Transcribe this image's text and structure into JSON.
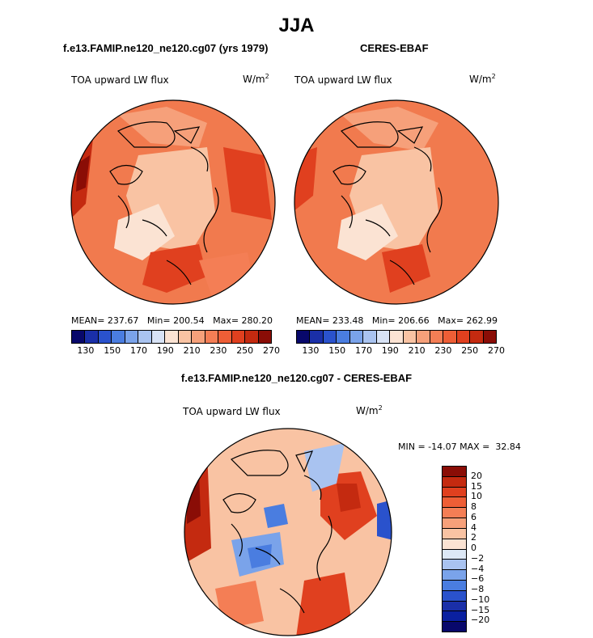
{
  "season": "JJA",
  "panels": {
    "model": {
      "title": "f.e13.FAMIP.ne120_ne120.cg07 (yrs 1979)",
      "variable": "TOA upward LW flux",
      "units_base": "W/m",
      "units_exp": "2",
      "stats": "MEAN= 237.67   Min= 200.54   Max= 280.20"
    },
    "obs": {
      "title": "CERES-EBAF",
      "variable": "TOA upward LW flux",
      "units_base": "W/m",
      "units_exp": "2",
      "stats": "MEAN= 233.48   Min= 206.66   Max= 262.99"
    },
    "diff": {
      "title": "f.e13.FAMIP.ne120_ne120.cg07 - CERES-EBAF",
      "variable": "TOA upward LW flux",
      "units_base": "W/m",
      "units_exp": "2",
      "stats": "MIN = -14.07 MAX =  32.84"
    }
  },
  "colorbar_abs": {
    "ticks": [
      "130",
      "150",
      "170",
      "190",
      "210",
      "230",
      "250",
      "270"
    ],
    "colors": [
      "#08086b",
      "#1a2fa8",
      "#2a52cc",
      "#4a7de0",
      "#7aa3ea",
      "#a9c3f0",
      "#d8e3f6",
      "#fbe3d3",
      "#f9c3a3",
      "#f6a07a",
      "#f47e55",
      "#ee5e36",
      "#e0401f",
      "#c42a10",
      "#8a0d06"
    ]
  },
  "colorbar_diff": {
    "labels": [
      "20",
      "15",
      "10",
      "8",
      "6",
      "4",
      "2",
      "0",
      "−2",
      "−4",
      "−6",
      "−8",
      "−10",
      "−15",
      "−20"
    ],
    "colors": [
      "#8a0d06",
      "#c42a10",
      "#e0401f",
      "#ee5e36",
      "#f47e55",
      "#f6a07a",
      "#f9c3a3",
      "#fbe3d3",
      "#dde8f6",
      "#a9c3f0",
      "#7aa3ea",
      "#4a7de0",
      "#2a52cc",
      "#1a2fa8",
      "#0a20a0",
      "#08086b"
    ]
  },
  "colors": {
    "map_base": "#f17a4e",
    "map_light": "#f9c3a3",
    "map_pale": "#fbe3d3",
    "map_dark": "#e0401f",
    "diff_base": "#f9c3a3",
    "diff_blue": "#7aa3ea",
    "diff_dark": "#c42a10"
  }
}
